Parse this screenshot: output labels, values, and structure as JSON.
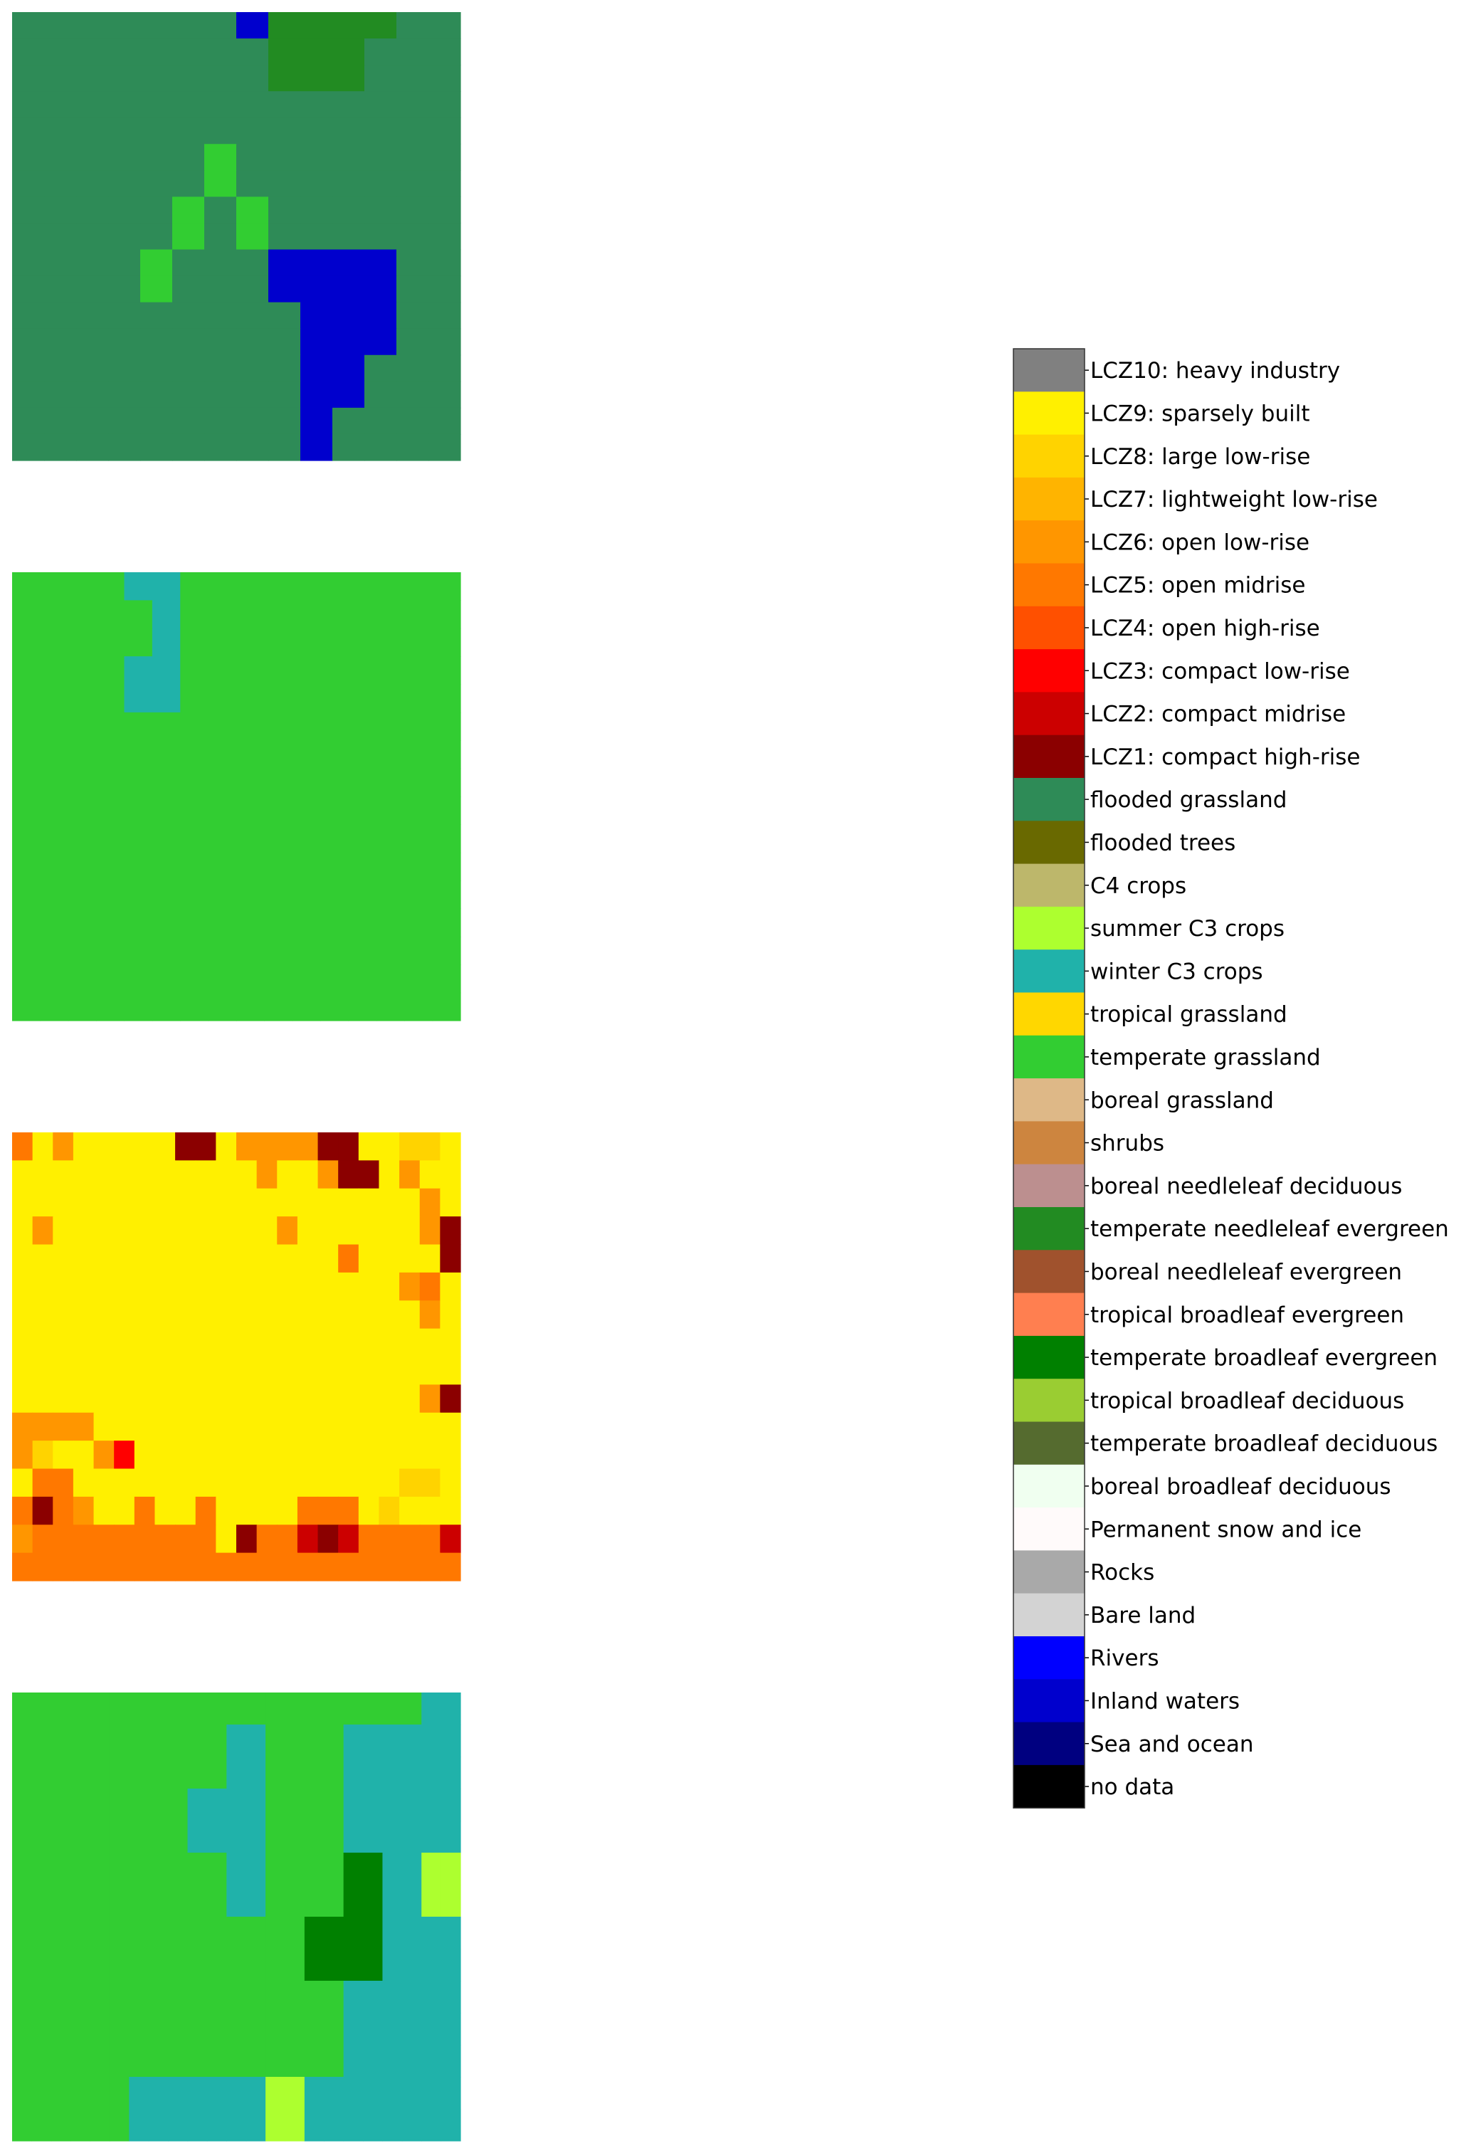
{
  "chart_data": {
    "type": "heatmap",
    "description_panels": 4,
    "palette": {
      "lcz10": "#808080",
      "lcz9": "#FFF000",
      "lcz8": "#FFD300",
      "lcz7": "#FFB400",
      "lcz6": "#FF9600",
      "lcz5": "#FF7800",
      "lcz4": "#FF5000",
      "lcz3": "#FF0000",
      "lcz2": "#CC0000",
      "lcz1": "#8B0000",
      "flooded_grassland": "#2E8B57",
      "flooded_trees": "#696900",
      "c4": "#BDB76B",
      "summer_c3": "#ADFF2F",
      "winter_c3": "#20B2AA",
      "trop_grass": "#FFD700",
      "temp_grass": "#32CD32",
      "boreal_grass": "#DEB887",
      "shrubs": "#CD853F",
      "bor_nl_dec": "#BC8F8F",
      "temp_nl_ev": "#228B22",
      "bor_nl_ev": "#A0522D",
      "trop_bl_ev": "#FF7F50",
      "temp_bl_ev": "#008000",
      "trop_bl_dec": "#9ACD32",
      "temp_bl_dec": "#556B2F",
      "bor_bl_dec": "#F0FFF0",
      "snow": "#FFFAFA",
      "rocks": "#A9A9A9",
      "bare": "#D3D3D3",
      "rivers": "#0000FF",
      "inland": "#0000CD",
      "sea": "#000080",
      "nodata": "#000000"
    },
    "legend": [
      {
        "key": "lcz10",
        "label": "LCZ10: heavy industry"
      },
      {
        "key": "lcz9",
        "label": "LCZ9: sparsely built"
      },
      {
        "key": "lcz8",
        "label": "LCZ8: large low-rise"
      },
      {
        "key": "lcz7",
        "label": "LCZ7: lightweight low-rise"
      },
      {
        "key": "lcz6",
        "label": "LCZ6: open low-rise"
      },
      {
        "key": "lcz5",
        "label": "LCZ5: open midrise"
      },
      {
        "key": "lcz4",
        "label": "LCZ4: open high-rise"
      },
      {
        "key": "lcz3",
        "label": "LCZ3: compact low-rise"
      },
      {
        "key": "lcz2",
        "label": "LCZ2: compact midrise"
      },
      {
        "key": "lcz1",
        "label": "LCZ1: compact high-rise"
      },
      {
        "key": "flooded_grassland",
        "label": "flooded grassland"
      },
      {
        "key": "flooded_trees",
        "label": "flooded trees"
      },
      {
        "key": "c4",
        "label": "C4 crops"
      },
      {
        "key": "summer_c3",
        "label": "summer C3 crops"
      },
      {
        "key": "winter_c3",
        "label": "winter C3 crops"
      },
      {
        "key": "trop_grass",
        "label": "tropical grassland"
      },
      {
        "key": "temp_grass",
        "label": "temperate grassland"
      },
      {
        "key": "boreal_grass",
        "label": "boreal grassland"
      },
      {
        "key": "shrubs",
        "label": "shrubs"
      },
      {
        "key": "bor_nl_dec",
        "label": "boreal needleleaf deciduous"
      },
      {
        "key": "temp_nl_ev",
        "label": "temperate needleleaf evergreen"
      },
      {
        "key": "bor_nl_ev",
        "label": "boreal needleleaf evergreen"
      },
      {
        "key": "trop_bl_ev",
        "label": "tropical broadleaf evergreen"
      },
      {
        "key": "temp_bl_ev",
        "label": "temperate broadleaf evergreen"
      },
      {
        "key": "trop_bl_dec",
        "label": "tropical broadleaf deciduous"
      },
      {
        "key": "temp_bl_dec",
        "label": "temperate broadleaf deciduous"
      },
      {
        "key": "bor_bl_dec",
        "label": "boreal broadleaf deciduous"
      },
      {
        "key": "snow",
        "label": "Permanent snow and ice"
      },
      {
        "key": "rocks",
        "label": "Rocks"
      },
      {
        "key": "bare",
        "label": "Bare land"
      },
      {
        "key": "rivers",
        "label": "Rivers"
      },
      {
        "key": "inland",
        "label": "Inland waters"
      },
      {
        "key": "sea",
        "label": "Sea and ocean"
      },
      {
        "key": "nodata",
        "label": "no data"
      }
    ],
    "panels": [
      {
        "name": "panel-1",
        "code_map": {
          "F": "flooded_grassland",
          "G": "temp_grass",
          "N": "temp_nl_ev",
          "I": "inland"
        },
        "grid": [
          "FFFFFFFINNNNFF",
          "FFFFFFFFNNNFFF",
          "FFFFFFFFNNNFFF",
          "FFFFFFFFFFFFFF",
          "FFFFFFFFFFFFFF",
          "FFFFFFGFFFFFFF",
          "FFFFFFGFFFFFFF",
          "FFFFFGFGFFFFFF",
          "FFFFFGFGFFFFFF",
          "FFFFGFFFIIIIFF",
          "FFFFGFFFIIIIFF",
          "FFFFFFFFFIIIFF",
          "FFFFFFFFFIIIFF",
          "FFFFFFFFFIIFFF",
          "FFFFFFFFFIIFFF",
          "FFFFFFFFFIFFFF",
          "FFFFFFFFFIFFFF"
        ]
      },
      {
        "name": "panel-2",
        "code_map": {
          "G": "temp_grass",
          "W": "winter_c3"
        },
        "grid": [
          "GGGGWWGGGGGGGGGG",
          "GGGGGWGGGGGGGGGG",
          "GGGGGWGGGGGGGGGG",
          "GGGGWWGGGGGGGGGG",
          "GGGGWWGGGGGGGGGG",
          "GGGGGGGGGGGGGGGG",
          "GGGGGGGGGGGGGGGG",
          "GGGGGGGGGGGGGGGG",
          "GGGGGGGGGGGGGGGG",
          "GGGGGGGGGGGGGGGG",
          "GGGGGGGGGGGGGGGG",
          "GGGGGGGGGGGGGGGG",
          "GGGGGGGGGGGGGGGG",
          "GGGGGGGGGGGGGGGG",
          "GGGGGGGGGGGGGGGG",
          "GGGGGGGGGGGGGGGG"
        ]
      },
      {
        "name": "panel-3",
        "code_map": {
          "Y": "lcz9",
          "E": "lcz8",
          "S": "lcz7",
          "O": "lcz6",
          "M": "lcz5",
          "R": "lcz3",
          "C": "lcz2",
          "D": "lcz1"
        },
        "grid": [
          "MYOYYYYYDDYOOOODDYYEEY",
          "YYYYYYYYYYYYOYYODDYOYY",
          "YYYYYYYYYYYYYYYYYYYYOY",
          "YOYYYYYYYYYYYOYYYYYYOD",
          "YYYYYYYYYYYYYYYYMYYYYD",
          "YYYYYYYYYYYYYYYYYYYOMY",
          "YYYYYYYYYYYYYYYYYYYYOY",
          "YYYYYYYYYYYYYYYYYYYYYY",
          "YYYYYYYYYYYYYYYYYYYYYY",
          "YYYYYYYYYYYYYYYYYYYYOD",
          "OOOOYYYYYYYYYYYYYYYYYY",
          "OEYYORYYYYYYYYYYYYYYYY",
          "YMMYYYYYYYYYYYYYYYYEEY",
          "MDMOYYMYYMYYYYMMMYEYYY",
          "OMMMMMMMMMYDMMCDCMMMMC",
          "MMMMMMMMMMMMMMMMMMMMMM"
        ]
      },
      {
        "name": "panel-4",
        "code_map": {
          "G": "temp_grass",
          "W": "winter_c3",
          "V": "temp_bl_ev",
          "S": "summer_c3"
        },
        "grid": [
          "GGGGGGGGGGGGGGGGGGGGGWW",
          "GGGGGGGGGGGWWGGGGWWWWWW",
          "GGGGGGGGGGGWWGGGGWWWWWW",
          "GGGGGGGGGWWWWGGGGWWWWWW",
          "GGGGGGGGGWWWWGGGGWWWWWW",
          "GGGGGGGGGGGWWGGGGVVWWSS",
          "GGGGGGGGGGGWWGGGGVVWWSS",
          "GGGGGGGGGGGGGGGVVVVWWWW",
          "GGGGGGGGGGGGGGGVVVVWWWW",
          "GGGGGGGGGGGGGGGGGWWWWWW",
          "GGGGGGGGGGGGGGGGGWWWWWW",
          "GGGGGGGGGGGGGGGGGWWWWWW",
          "GGGGGGWWWWWWWSSWWWWWWWW",
          "GGGGGGWWWWWWWSSWWWWWWWW"
        ]
      }
    ]
  }
}
